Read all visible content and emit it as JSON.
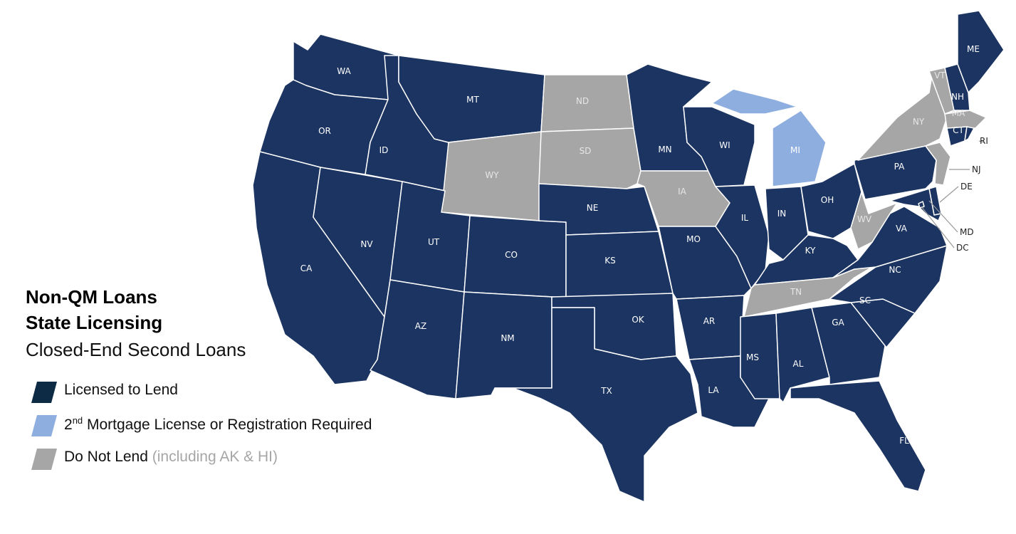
{
  "title": {
    "line1": "Non-QM Loans",
    "line2": "State Licensing",
    "line3": "Closed-End Second Loans"
  },
  "colors": {
    "licensed": "#1c3461",
    "licensed_swatch": "#0d2b45",
    "registration": "#8eaee0",
    "do_not_lend": "#a6a6a6",
    "border": "#ffffff"
  },
  "legend": [
    {
      "status": "licensed",
      "label": "Licensed to Lend"
    },
    {
      "status": "registration",
      "label_prefix": "2",
      "label_sup": "nd",
      "label": " Mortgage License or Registration Required"
    },
    {
      "status": "do_not_lend",
      "label": "Do Not Lend",
      "note": "(including AK & HI)"
    }
  ],
  "states": [
    {
      "abbr": "WA",
      "status": "licensed"
    },
    {
      "abbr": "OR",
      "status": "licensed"
    },
    {
      "abbr": "CA",
      "status": "licensed"
    },
    {
      "abbr": "NV",
      "status": "licensed"
    },
    {
      "abbr": "ID",
      "status": "licensed"
    },
    {
      "abbr": "MT",
      "status": "licensed"
    },
    {
      "abbr": "WY",
      "status": "do_not_lend"
    },
    {
      "abbr": "UT",
      "status": "licensed"
    },
    {
      "abbr": "CO",
      "status": "licensed"
    },
    {
      "abbr": "AZ",
      "status": "licensed"
    },
    {
      "abbr": "NM",
      "status": "licensed"
    },
    {
      "abbr": "ND",
      "status": "do_not_lend"
    },
    {
      "abbr": "SD",
      "status": "do_not_lend"
    },
    {
      "abbr": "NE",
      "status": "licensed"
    },
    {
      "abbr": "KS",
      "status": "licensed"
    },
    {
      "abbr": "OK",
      "status": "licensed"
    },
    {
      "abbr": "TX",
      "status": "licensed"
    },
    {
      "abbr": "MN",
      "status": "licensed"
    },
    {
      "abbr": "IA",
      "status": "do_not_lend"
    },
    {
      "abbr": "MO",
      "status": "licensed"
    },
    {
      "abbr": "AR",
      "status": "licensed"
    },
    {
      "abbr": "LA",
      "status": "licensed"
    },
    {
      "abbr": "WI",
      "status": "licensed"
    },
    {
      "abbr": "IL",
      "status": "licensed"
    },
    {
      "abbr": "MI",
      "status": "registration"
    },
    {
      "abbr": "IN",
      "status": "licensed"
    },
    {
      "abbr": "OH",
      "status": "licensed"
    },
    {
      "abbr": "KY",
      "status": "licensed"
    },
    {
      "abbr": "TN",
      "status": "do_not_lend"
    },
    {
      "abbr": "MS",
      "status": "licensed"
    },
    {
      "abbr": "AL",
      "status": "licensed"
    },
    {
      "abbr": "GA",
      "status": "licensed"
    },
    {
      "abbr": "FL",
      "status": "licensed"
    },
    {
      "abbr": "SC",
      "status": "licensed"
    },
    {
      "abbr": "NC",
      "status": "licensed"
    },
    {
      "abbr": "VA",
      "status": "licensed"
    },
    {
      "abbr": "WV",
      "status": "do_not_lend"
    },
    {
      "abbr": "PA",
      "status": "licensed"
    },
    {
      "abbr": "NY",
      "status": "do_not_lend"
    },
    {
      "abbr": "NJ",
      "status": "do_not_lend"
    },
    {
      "abbr": "DE",
      "status": "licensed"
    },
    {
      "abbr": "MD",
      "status": "licensed"
    },
    {
      "abbr": "DC",
      "status": "licensed"
    },
    {
      "abbr": "VT",
      "status": "do_not_lend"
    },
    {
      "abbr": "NH",
      "status": "licensed"
    },
    {
      "abbr": "ME",
      "status": "licensed"
    },
    {
      "abbr": "MA",
      "status": "do_not_lend"
    },
    {
      "abbr": "CT",
      "status": "licensed"
    },
    {
      "abbr": "RI",
      "status": "licensed"
    }
  ]
}
